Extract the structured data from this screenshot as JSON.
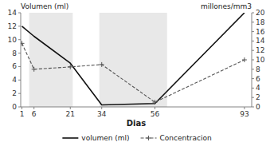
{
  "chart_data": {
    "type": "line",
    "x": [
      1,
      6,
      21,
      34,
      56,
      93
    ],
    "series": [
      {
        "name": "volumen (ml)",
        "color": "#111111",
        "line_style": "solid",
        "values": [
          12,
          10.5,
          6.5,
          0.3,
          0.5,
          14
        ]
      },
      {
        "name": "Concentracion",
        "color": "#555555",
        "line_style": "dashed",
        "marker": "plus",
        "axis": "y2",
        "values": [
          13.5,
          8,
          8.5,
          9,
          1,
          10
        ]
      }
    ],
    "xlabel": "Dias",
    "ylabel": "Volumen (ml)",
    "y2label": "millones/mm3",
    "xlim": [
      0.5,
      96
    ],
    "xticks": [
      1,
      6,
      21,
      34,
      56,
      93
    ],
    "ylim": [
      0,
      14
    ],
    "yticks": [
      0,
      2,
      4,
      6,
      8,
      10,
      12,
      14
    ],
    "y2lim": [
      0,
      20
    ],
    "y2ticks": [
      0,
      2,
      4,
      6,
      8,
      10,
      12,
      14,
      16,
      18,
      20
    ],
    "shaded_regions": [
      [
        4,
        22
      ],
      [
        33,
        61
      ]
    ],
    "grid": false,
    "legend": "bottom"
  }
}
